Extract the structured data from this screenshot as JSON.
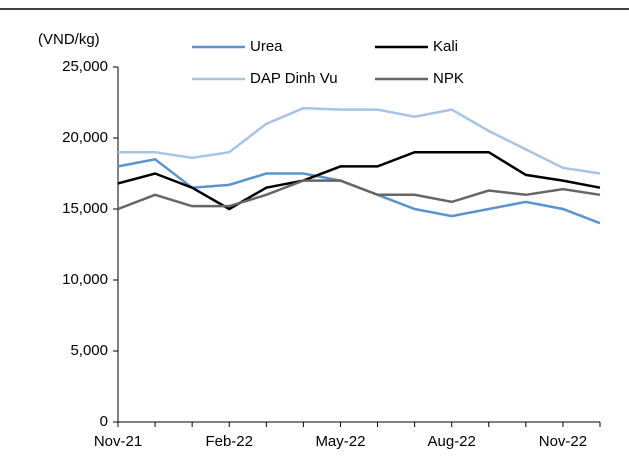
{
  "chart_data": {
    "type": "line",
    "unit_label": "(VND/kg)",
    "categories": [
      "Nov-21",
      null,
      null,
      "Feb-22",
      null,
      null,
      "May-22",
      null,
      null,
      "Aug-22",
      null,
      null,
      "Nov-22",
      null
    ],
    "series": [
      {
        "name": "Urea",
        "color": "#5b93cf",
        "values": [
          18000,
          18500,
          16500,
          16700,
          17500,
          17500,
          17000,
          16000,
          15000,
          14500,
          15000,
          15500,
          15000,
          14000
        ]
      },
      {
        "name": "Kali",
        "color": "#000000",
        "values": [
          16800,
          17500,
          16500,
          15000,
          16500,
          17000,
          18000,
          18000,
          19000,
          19000,
          19000,
          17400,
          17000,
          16500
        ]
      },
      {
        "name": "DAP Dinh Vu",
        "color": "#a8c3e3",
        "values": [
          19000,
          19000,
          18600,
          19000,
          21000,
          22100,
          22000,
          22000,
          21500,
          22000,
          20500,
          19200,
          17900,
          17500
        ]
      },
      {
        "name": "NPK",
        "color": "#666666",
        "values": [
          15000,
          16000,
          15200,
          15200,
          16000,
          17000,
          17000,
          16000,
          16000,
          15500,
          16300,
          16000,
          16400,
          16000
        ]
      }
    ],
    "ylim": [
      0,
      25000
    ],
    "yticks": [
      0,
      {
        "value": 5000,
        "label": "5,000"
      },
      {
        "value": 10000,
        "label": "10,000"
      },
      {
        "value": 15000,
        "label": "15,000"
      },
      {
        "value": 20000,
        "label": "20,000"
      },
      {
        "value": 25000,
        "label": "25,000"
      }
    ],
    "grid": false
  }
}
